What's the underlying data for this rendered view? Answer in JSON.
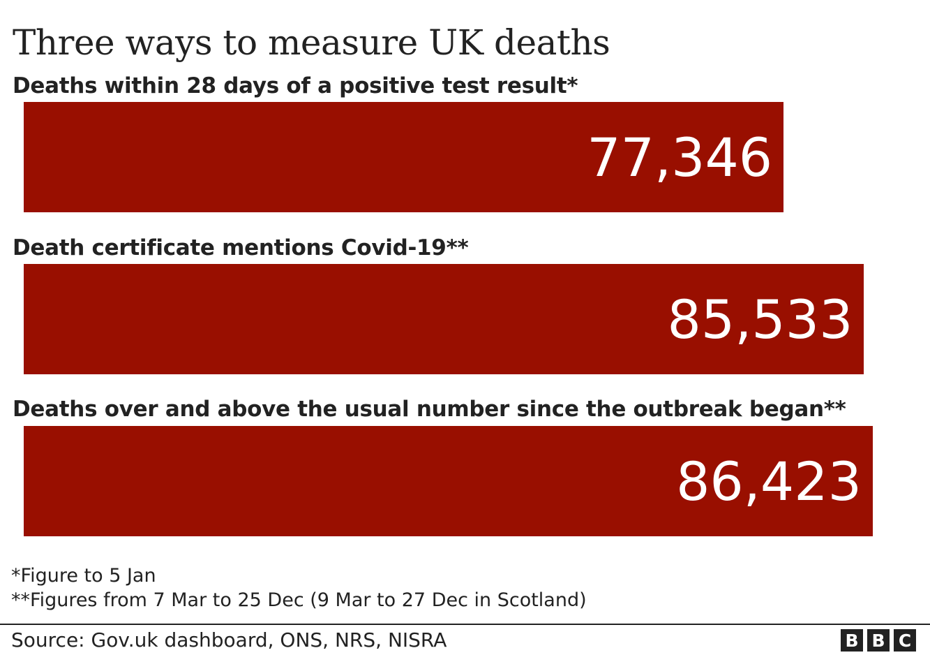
{
  "chart_data": {
    "type": "bar",
    "orientation": "horizontal",
    "title": "Three ways to measure UK deaths",
    "categories": [
      "Deaths within 28 days of a positive test result*",
      "Death certificate mentions Covid-19**",
      "Deaths over and above the usual number since the outbreak began**"
    ],
    "values": [
      77346,
      85533,
      86423
    ],
    "value_labels": [
      "77,346",
      "85,533",
      "86,423"
    ],
    "bar_color": "#990F00",
    "grid": false,
    "legend": "none"
  },
  "footnotes": [
    "*Figure to 5 Jan",
    "**Figures from 7 Mar to 25 Dec (9 Mar to 27 Dec in Scotland)"
  ],
  "source": "Source: Gov.uk dashboard, ONS, NRS, NISRA",
  "logo": [
    "B",
    "B",
    "C"
  ]
}
